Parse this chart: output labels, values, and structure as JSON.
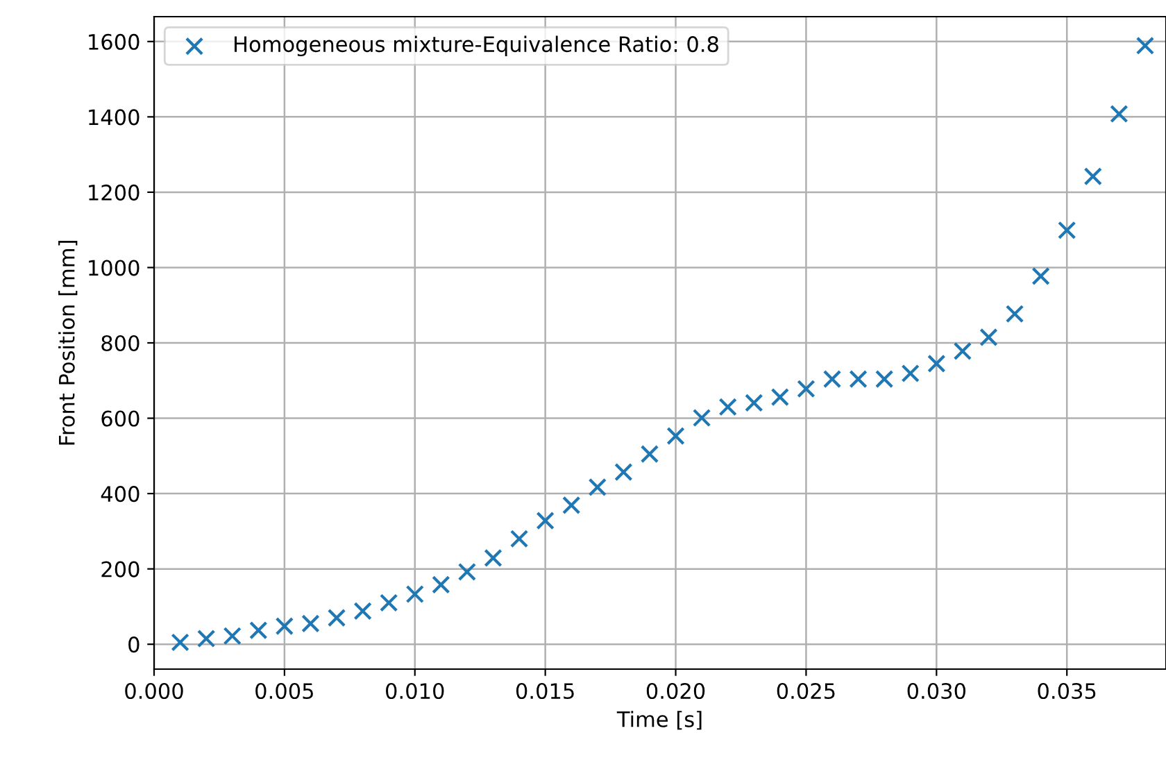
{
  "chart_data": {
    "type": "scatter",
    "xlabel": "Time [s]",
    "ylabel": "Front Position [mm]",
    "x": [
      0.001,
      0.002,
      0.003,
      0.004,
      0.005,
      0.006,
      0.007,
      0.008,
      0.009,
      0.01,
      0.011,
      0.012,
      0.013,
      0.014,
      0.015,
      0.016,
      0.017,
      0.018,
      0.019,
      0.02,
      0.021,
      0.022,
      0.023,
      0.024,
      0.025,
      0.026,
      0.027,
      0.028,
      0.029,
      0.03,
      0.031,
      0.032,
      0.033,
      0.034,
      0.035,
      0.036,
      0.037,
      0.038
    ],
    "series": [
      {
        "name": "Homogeneous mixture-Equivalence Ratio: 0.8",
        "color": "#1f77b4",
        "values": [
          5,
          15,
          22,
          37,
          48,
          55,
          70,
          88,
          110,
          133,
          158,
          192,
          229,
          280,
          328,
          369,
          417,
          457,
          505,
          553,
          601,
          630,
          641,
          656,
          678,
          704,
          704,
          704,
          719,
          745,
          778,
          815,
          877,
          977,
          1099,
          1242,
          1408,
          1589
        ]
      }
    ],
    "marker": "cross",
    "grid": true,
    "legend": "top left",
    "xlim": [
      0,
      0.0388
    ],
    "ylim": [
      -66,
      1666
    ],
    "xticks": [
      {
        "value": 0,
        "label": "0.000"
      },
      {
        "value": 0.005,
        "label": "0.005"
      },
      {
        "value": 0.01,
        "label": "0.010"
      },
      {
        "value": 0.015,
        "label": "0.015"
      },
      {
        "value": 0.02,
        "label": "0.020"
      },
      {
        "value": 0.025,
        "label": "0.025"
      },
      {
        "value": 0.03,
        "label": "0.030"
      },
      {
        "value": 0.035,
        "label": "0.035"
      }
    ],
    "yticks": [
      0,
      200,
      400,
      600,
      800,
      1000,
      1200,
      1400,
      1600
    ]
  }
}
